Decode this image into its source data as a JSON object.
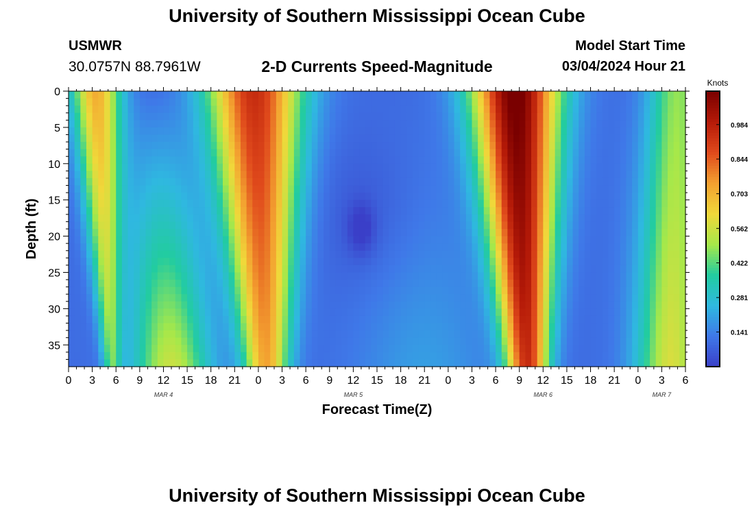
{
  "header": {
    "title": "University of Southern Mississippi Ocean Cube",
    "station": "USMWR",
    "coordinates": "30.0757N  88.7961W",
    "subtitle": "2-D Currents Speed-Magnitude",
    "model_start_label": "Model Start Time",
    "model_start_value": "03/04/2024 Hour 21"
  },
  "footer": {
    "title": "University of Southern Mississippi Ocean Cube"
  },
  "chart_data": {
    "type": "heatmap",
    "title": "2-D Currents Speed-Magnitude",
    "xlabel": "Forecast Time(Z)",
    "ylabel": "Depth (ft)",
    "x_tick_labels": [
      "0",
      "3",
      "6",
      "9",
      "12",
      "15",
      "18",
      "21",
      "0",
      "3",
      "6",
      "9",
      "12",
      "15",
      "18",
      "21",
      "0",
      "3",
      "6",
      "9",
      "12",
      "15",
      "18",
      "21",
      "0",
      "3",
      "6"
    ],
    "date_labels": [
      {
        "label": "MAR 4",
        "hour": 12
      },
      {
        "label": "MAR 5",
        "hour": 36
      },
      {
        "label": "MAR 6",
        "hour": 60
      },
      {
        "label": "MAR 7",
        "hour": 75
      }
    ],
    "x_range_hours": [
      0,
      78
    ],
    "y_ticks": [
      0,
      5,
      10,
      15,
      20,
      25,
      30,
      35
    ],
    "y_range_ft": [
      0,
      38
    ],
    "colorbar": {
      "unit": "Knots",
      "ticks": [
        0.141,
        0.281,
        0.422,
        0.562,
        0.703,
        0.844,
        0.984
      ],
      "tick_labels": [
        "0.141",
        "0.281",
        "0.422",
        "0.562",
        "0.703",
        "0.844",
        "0.984"
      ],
      "range": [
        0.0,
        1.12
      ],
      "colors": [
        "#3a3fc8",
        "#3f78e8",
        "#2fb8e0",
        "#22cca0",
        "#a6e84a",
        "#f0d83a",
        "#f3a030",
        "#e04a1c",
        "#b51a08",
        "#7a0000"
      ]
    },
    "features": {
      "speed_maxima": [
        {
          "hour": 3.5,
          "max_knots": 0.62
        },
        {
          "hour": 24,
          "max_knots": 0.82
        },
        {
          "hour": 57,
          "max_knots": 1.05
        },
        {
          "hour": 77,
          "max_knots": 0.42
        }
      ],
      "speed_minima": [
        {
          "hour": 12,
          "min_knots": 0.06
        },
        {
          "hour": 37,
          "min_knots": 0.0,
          "depth_ft": 19
        },
        {
          "hour": 71,
          "min_knots": 0.12
        }
      ]
    }
  }
}
